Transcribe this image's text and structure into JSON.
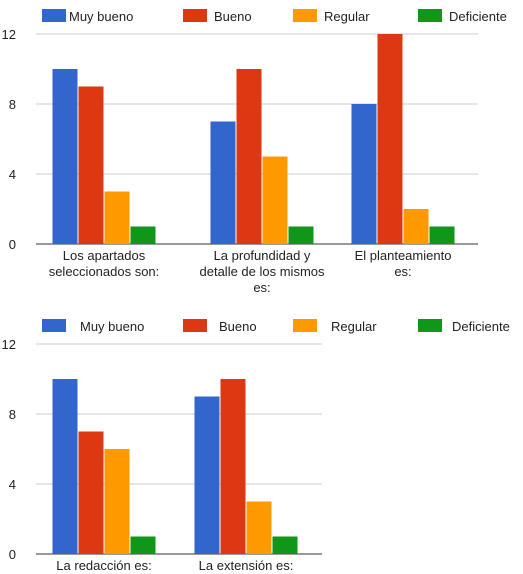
{
  "chart_data": [
    {
      "type": "bar",
      "legend_position": "top",
      "grid": true,
      "ylim": [
        0,
        12
      ],
      "yticks": [
        "0",
        "4",
        "8",
        "12"
      ],
      "categories": [
        [
          "Los apartados",
          "seleccionados son:"
        ],
        [
          "La profundidad y",
          "detalle de los mismos",
          "es:"
        ],
        [
          "El planteamiento",
          "es:"
        ]
      ],
      "series": [
        {
          "name": "Muy bueno",
          "color": "#3366cc",
          "values": [
            10,
            7,
            8
          ]
        },
        {
          "name": "Bueno",
          "color": "#dc3912",
          "values": [
            9,
            10,
            12
          ]
        },
        {
          "name": "Regular",
          "color": "#ff9900",
          "values": [
            3,
            5,
            2
          ]
        },
        {
          "name": "Deficiente",
          "color": "#109618",
          "values": [
            1,
            1,
            1
          ]
        }
      ]
    },
    {
      "type": "bar",
      "legend_position": "top",
      "grid": true,
      "ylim": [
        0,
        12
      ],
      "yticks": [
        "0",
        "4",
        "8",
        "12"
      ],
      "categories": [
        [
          "La redacción es:"
        ],
        [
          "La extensión es:"
        ]
      ],
      "series": [
        {
          "name": "Muy bueno",
          "color": "#3366cc",
          "values": [
            10,
            9
          ]
        },
        {
          "name": "Bueno",
          "color": "#dc3912",
          "values": [
            7,
            10
          ]
        },
        {
          "name": "Regular",
          "color": "#ff9900",
          "values": [
            6,
            3
          ]
        },
        {
          "name": "Deficiente",
          "color": "#109618",
          "values": [
            1,
            1
          ]
        }
      ]
    }
  ]
}
